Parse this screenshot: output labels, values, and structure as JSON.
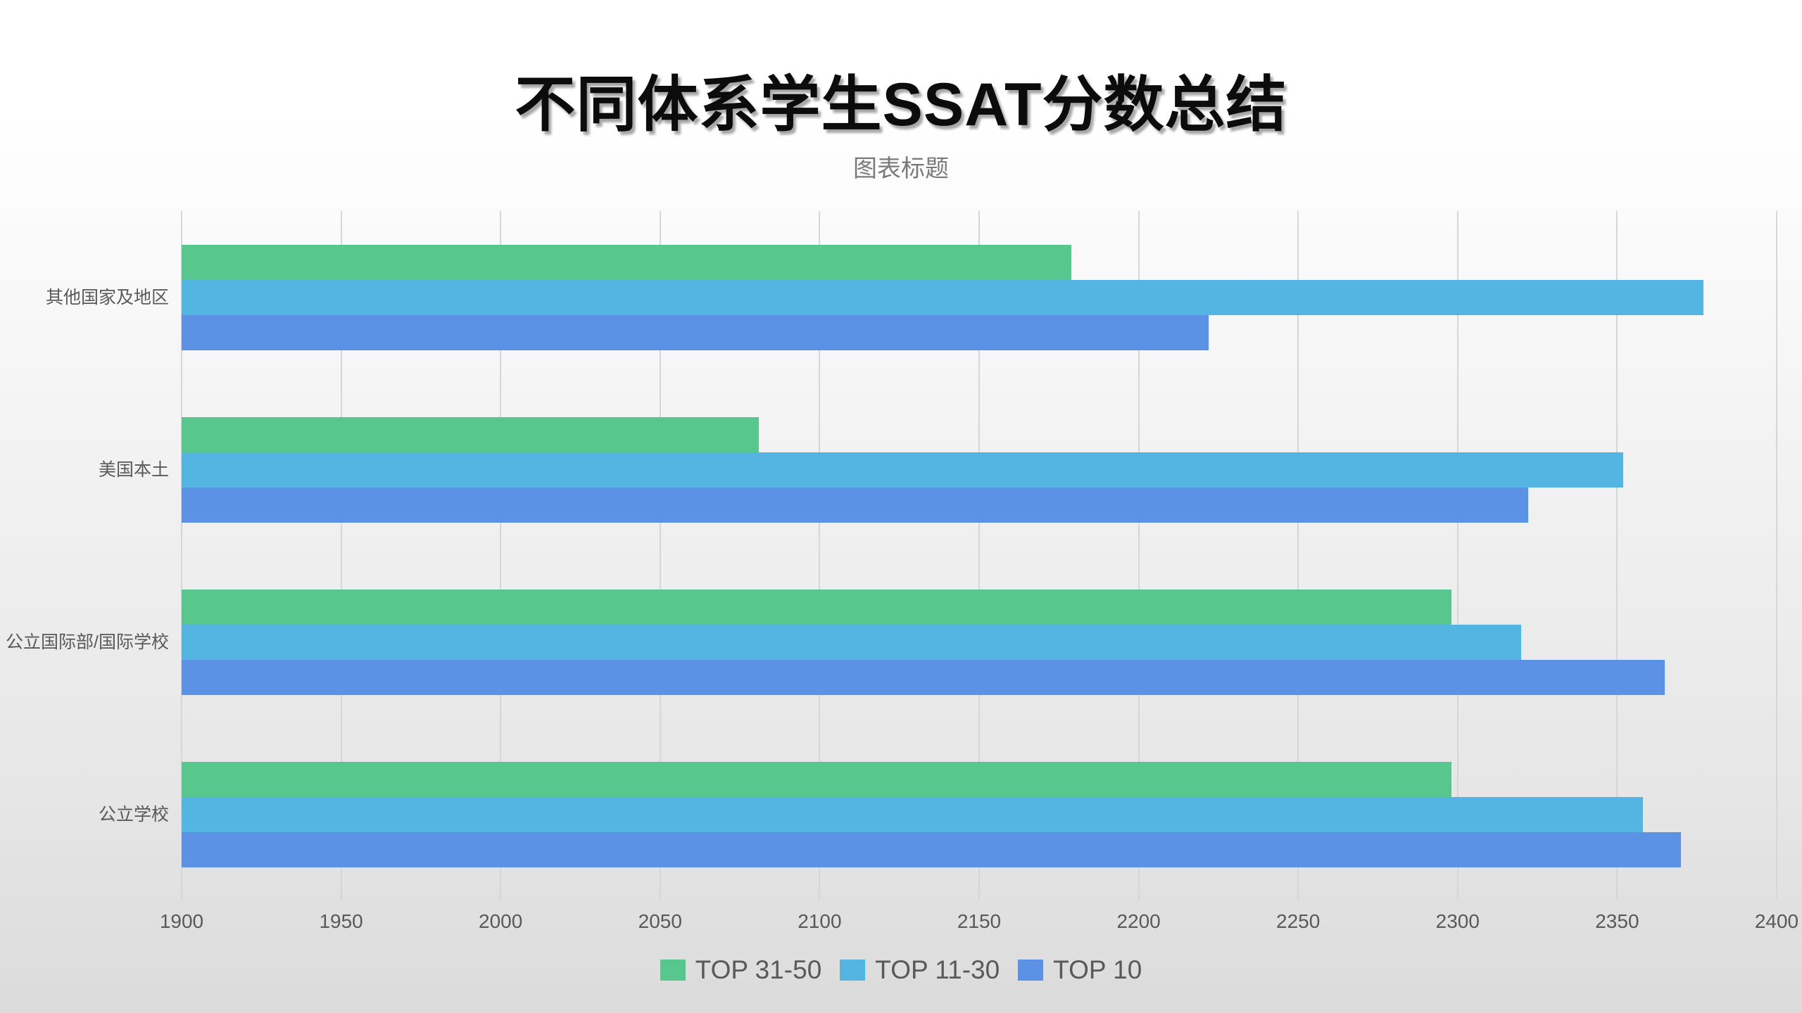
{
  "chart_data": {
    "type": "bar",
    "orientation": "horizontal",
    "title": "不同体系学生SSAT分数总结",
    "subtitle": "图表标题",
    "category_order": "top-to-bottom",
    "categories": [
      "其他国家及地区",
      "美国本土",
      "公立国际部/国际学校",
      "公立学校"
    ],
    "series": [
      {
        "name": "TOP 31-50",
        "color": "#57C78E",
        "values": [
          2179,
          2081,
          2298,
          2298
        ]
      },
      {
        "name": "TOP 11-30",
        "color": "#55B5E2",
        "values": [
          2377,
          2352,
          2320,
          2358
        ]
      },
      {
        "name": "TOP 10",
        "color": "#5B92E5",
        "values": [
          2222,
          2322,
          2365,
          2370
        ]
      }
    ],
    "xlabel": "",
    "ylabel": "",
    "x_axis": {
      "min": 1900,
      "max": 2400,
      "step": 50,
      "tick_labels": [
        "1900",
        "1950",
        "2000",
        "2050",
        "2100",
        "2150",
        "2200",
        "2250",
        "2300",
        "2350",
        "2400"
      ]
    },
    "grid": true,
    "gridline_color": "#d6d6d6",
    "legend_position": "bottom",
    "text_color": "#595959",
    "title_color": "#0c0c0c",
    "subtitle_color": "#7a7a7a"
  }
}
